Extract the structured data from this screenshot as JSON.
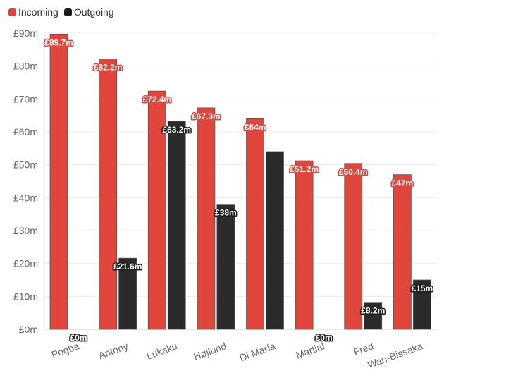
{
  "chart_data": {
    "type": "bar",
    "categories": [
      "Pogba",
      "Antony",
      "Lukaku",
      "Højlund",
      "Di María",
      "Martial",
      "Fred",
      "Wan-Bissaka"
    ],
    "series": [
      {
        "name": "Incoming",
        "color": "#e0463b",
        "values": [
          89.7,
          82.2,
          72.4,
          67.3,
          64,
          51.2,
          50.4,
          47
        ],
        "labels": [
          "£89.7m",
          "£82.2m",
          "£72.4m",
          "£67.3m",
          "£64m",
          "£51.2m",
          "£50.4m",
          "£47m"
        ]
      },
      {
        "name": "Outgoing",
        "color": "#2b2b2b",
        "values": [
          0,
          21.6,
          63.2,
          38,
          54,
          0,
          8.2,
          15
        ],
        "labels": [
          "£0m",
          "£21.6m",
          "£63.2m",
          "£38m",
          "",
          "£0m",
          "£8.2m",
          "£15m"
        ]
      }
    ],
    "yticks": [
      "£0m",
      "£10m",
      "£20m",
      "£30m",
      "£40m",
      "£50m",
      "£60m",
      "£70m",
      "£80m",
      "£90m"
    ],
    "ylim": [
      0,
      90
    ],
    "grid": true,
    "legend_position": "top-left"
  }
}
